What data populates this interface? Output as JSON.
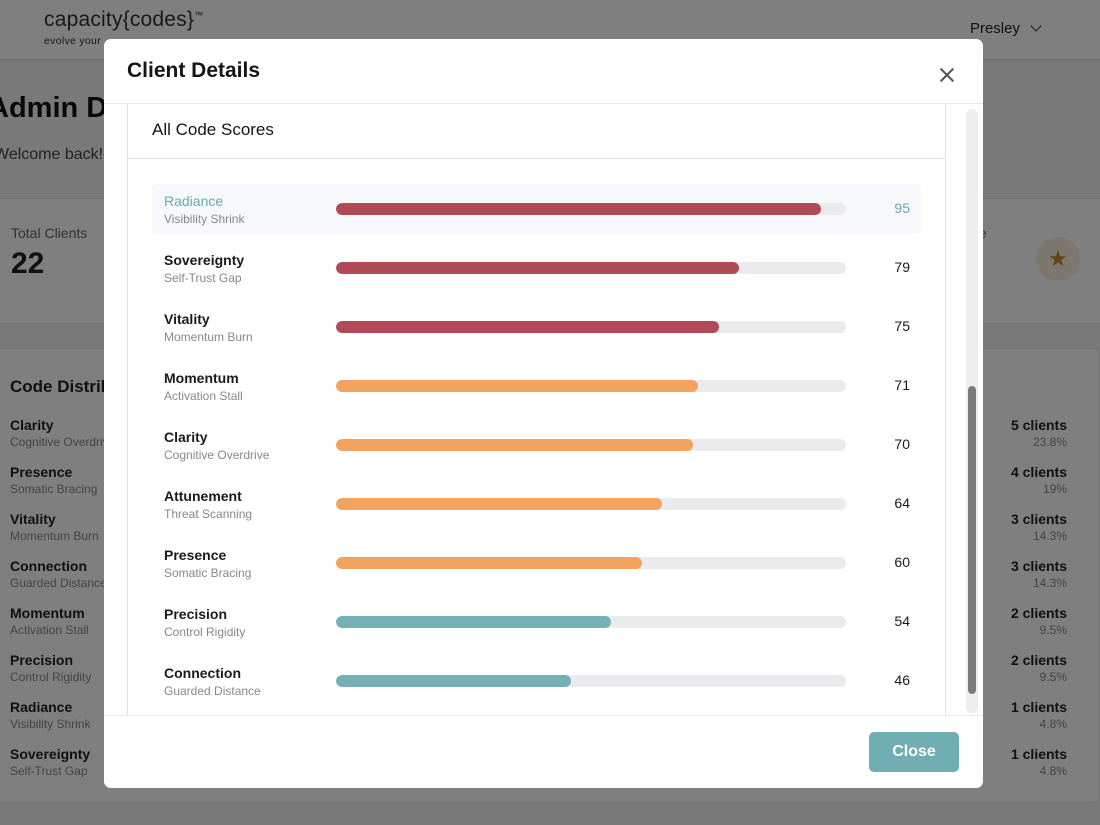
{
  "app": {
    "logo": "capacity{codes}",
    "logo_tm": "™",
    "tagline": "evolve your",
    "user_name": "Presley"
  },
  "dashboard": {
    "title": "Admin Dashboard",
    "welcome": "Welcome back!",
    "total_clients_label": "Total Clients",
    "total_clients_value": "22",
    "right_card_label": "de",
    "distribution_title": "Code Distribution",
    "distribution": [
      {
        "name": "Clarity",
        "sub": "Cognitive Overdrive",
        "count": "5 clients",
        "pct": "23.8%"
      },
      {
        "name": "Presence",
        "sub": "Somatic Bracing",
        "count": "4 clients",
        "pct": "19%"
      },
      {
        "name": "Vitality",
        "sub": "Momentum Burn",
        "count": "3 clients",
        "pct": "14.3%"
      },
      {
        "name": "Connection",
        "sub": "Guarded Distance",
        "count": "3 clients",
        "pct": "14.3%"
      },
      {
        "name": "Momentum",
        "sub": "Activation Stall",
        "count": "2 clients",
        "pct": "9.5%"
      },
      {
        "name": "Precision",
        "sub": "Control Rigidity",
        "count": "2 clients",
        "pct": "9.5%"
      },
      {
        "name": "Radiance",
        "sub": "Visibility Shrink",
        "count": "1 clients",
        "pct": "4.8%"
      },
      {
        "name": "Sovereignty",
        "sub": "Self-Trust Gap",
        "count": "1 clients",
        "pct": "4.8%"
      }
    ]
  },
  "modal": {
    "title": "Client Details",
    "section_title": "All Code Scores",
    "close_label": "Close",
    "scores": [
      {
        "name": "Radiance",
        "sub": "Visibility Shrink",
        "score": 95,
        "color": "#b04a57",
        "active": true
      },
      {
        "name": "Sovereignty",
        "sub": "Self-Trust Gap",
        "score": 79,
        "color": "#b04a57",
        "active": false
      },
      {
        "name": "Vitality",
        "sub": "Momentum Burn",
        "score": 75,
        "color": "#b04a57",
        "active": false
      },
      {
        "name": "Momentum",
        "sub": "Activation Stall",
        "score": 71,
        "color": "#f4a25f",
        "active": false
      },
      {
        "name": "Clarity",
        "sub": "Cognitive Overdrive",
        "score": 70,
        "color": "#f4a25f",
        "active": false
      },
      {
        "name": "Attunement",
        "sub": "Threat Scanning",
        "score": 64,
        "color": "#f4a25f",
        "active": false
      },
      {
        "name": "Presence",
        "sub": "Somatic Bracing",
        "score": 60,
        "color": "#f4a25f",
        "active": false
      },
      {
        "name": "Precision",
        "sub": "Control Rigidity",
        "score": 54,
        "color": "#77afb7",
        "active": false
      },
      {
        "name": "Connection",
        "sub": "Guarded Distance",
        "score": 46,
        "color": "#77afb7",
        "active": false
      }
    ]
  }
}
